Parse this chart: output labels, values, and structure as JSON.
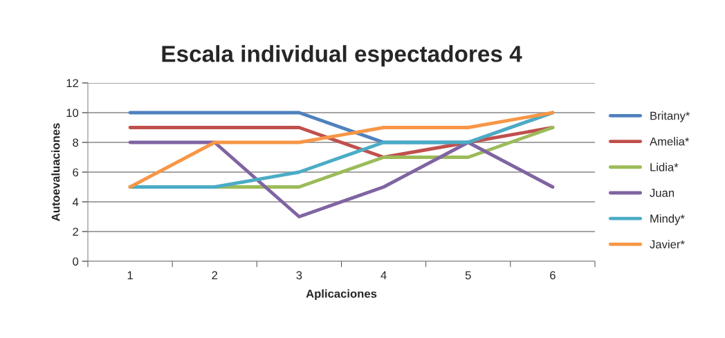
{
  "chart_data": {
    "type": "line",
    "title": "Escala individual espectadores 4",
    "xlabel": "Aplicaciones",
    "ylabel": "Autoevaluaciones",
    "categories": [
      "1",
      "2",
      "3",
      "4",
      "5",
      "6"
    ],
    "series": [
      {
        "name": "Britany*",
        "color": "#4f81bd",
        "values": [
          10,
          10,
          10,
          8,
          8,
          10
        ]
      },
      {
        "name": "Amelia*",
        "color": "#c0504d",
        "values": [
          9,
          9,
          9,
          7,
          8,
          9
        ]
      },
      {
        "name": "Lidia*",
        "color": "#9bbb59",
        "values": [
          5,
          5,
          5,
          7,
          7,
          9
        ]
      },
      {
        "name": "Juan",
        "color": "#8064a2",
        "values": [
          8,
          8,
          3,
          5,
          8,
          5
        ]
      },
      {
        "name": "Mindy*",
        "color": "#4bacc6",
        "values": [
          5,
          5,
          6,
          8,
          8,
          10
        ]
      },
      {
        "name": "Javier*",
        "color": "#f79646",
        "values": [
          5,
          8,
          8,
          9,
          9,
          10
        ]
      }
    ],
    "ylim": [
      0,
      12
    ],
    "yticks": [
      0,
      2,
      4,
      6,
      8,
      10,
      12
    ],
    "grid": "y",
    "legend": "right",
    "marker": "none",
    "line_style": "solid"
  }
}
